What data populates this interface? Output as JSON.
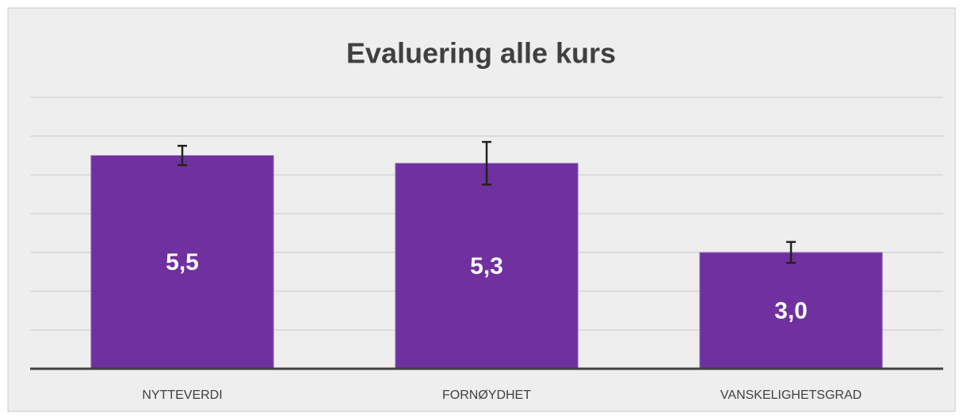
{
  "chart_data": {
    "type": "bar",
    "title": "Evaluering alle kurs",
    "categories": [
      "NYTTEVERDI",
      "FORNØYDHET",
      "VANSKELIGHETSGRAD"
    ],
    "values": [
      5.5,
      5.3,
      3.0
    ],
    "value_labels": [
      "5,5",
      "5,3",
      "3,0"
    ],
    "errors": [
      0.25,
      0.55,
      0.27
    ],
    "color": "#7030a0",
    "ylim": [
      0,
      7
    ],
    "yticks": [
      0,
      1,
      2,
      3,
      4,
      5,
      6,
      7
    ],
    "grid": true
  }
}
